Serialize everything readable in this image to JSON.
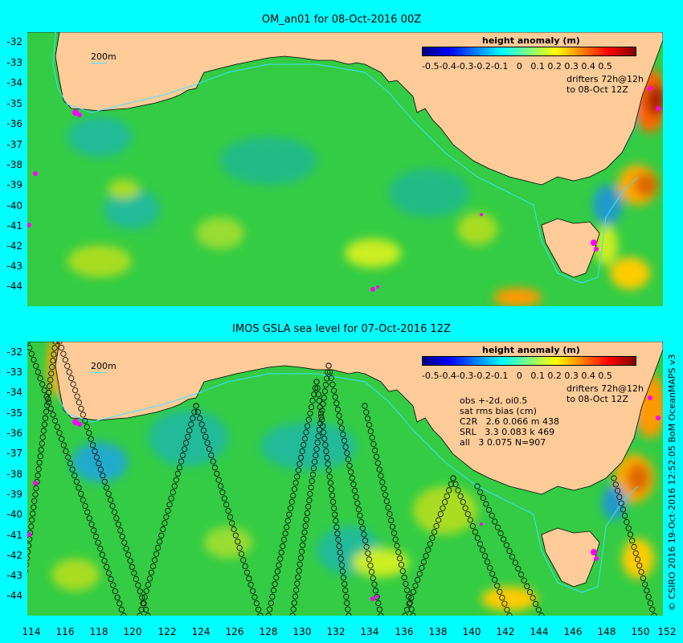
{
  "panels": [
    {
      "title": "OM_an01 for 08-Oct-2016 00Z",
      "contour_label": "200m",
      "colorbar": {
        "title": "height anomaly (m)",
        "ticks": [
          "-0.5",
          "-0.4",
          "-0.3",
          "-0.2",
          "-0.1",
          "0",
          "0.1",
          "0.2",
          "0.3",
          "0.4",
          "0.5"
        ]
      },
      "drifters_note": "drifters 72h@12h\nto 08-Oct 12Z"
    },
    {
      "title": "IMOS GSLA sea level  for 07-Oct-2016 12Z",
      "contour_label": "200m",
      "colorbar": {
        "title": "height anomaly (m)",
        "ticks": [
          "-0.5",
          "-0.4",
          "-0.3",
          "-0.2",
          "-0.1",
          "0",
          "0.1",
          "0.2",
          "0.3",
          "0.4",
          "0.5"
        ]
      },
      "drifters_note": "drifters 72h@12h\nto 08-Oct 12Z",
      "obs_stats": "obs +-2d, oi0.5\nsat rms bias (cm)\nC2R   2.6 0.066 m 438\nSRL   3.3 0.083 k 469\nall   3 0.075 N=907"
    }
  ],
  "lat_ticks": [
    "-32",
    "-33",
    "-34",
    "-35",
    "-36",
    "-37",
    "-38",
    "-39",
    "-40",
    "-41",
    "-42",
    "-43",
    "-44"
  ],
  "lon_ticks": [
    "114",
    "116",
    "118",
    "120",
    "122",
    "124",
    "126",
    "128",
    "130",
    "132",
    "134",
    "136",
    "138",
    "140",
    "142",
    "144",
    "146",
    "148",
    "150",
    "152"
  ],
  "credit": "© CSIRO 2016  19-Oct-2016 12:52:05 BoM OceanMAPS v3",
  "colors": {
    "background": "#00ffff",
    "land": "#ffcc99",
    "ocean_base": "#33cc44",
    "colormap": [
      "#00007f",
      "#0000ff",
      "#007fff",
      "#00ffff",
      "#7fff7f",
      "#ffff00",
      "#ff7f00",
      "#ff0000",
      "#7f0000"
    ],
    "drifter": "#ff00ff",
    "contour_200m": "#40e0ff"
  }
}
